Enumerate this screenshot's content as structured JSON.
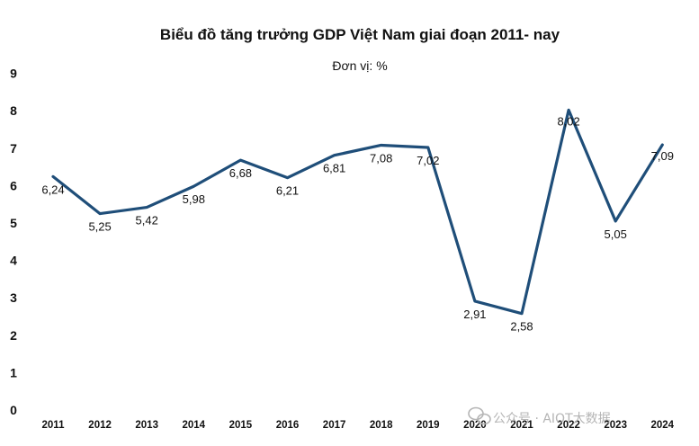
{
  "chart_data": {
    "type": "line",
    "title": "Biểu đồ tăng trưởng GDP Việt Nam giai đoạn 2011- nay",
    "subtitle": "Đơn vị: %",
    "categories": [
      "2011",
      "2012",
      "2013",
      "2014",
      "2015",
      "2016",
      "2017",
      "2018",
      "2019",
      "2020",
      "2021",
      "2022",
      "2023",
      "2024"
    ],
    "values": [
      6.24,
      5.25,
      5.42,
      5.98,
      6.68,
      6.21,
      6.81,
      7.08,
      7.02,
      2.91,
      2.58,
      8.02,
      5.05,
      7.09
    ],
    "data_labels": [
      "6,24",
      "5,25",
      "5,42",
      "5,98",
      "6,68",
      "6,21",
      "6,81",
      "7,08",
      "7,02",
      "2,91",
      "2,58",
      "8,02",
      "5,05",
      "7,09"
    ],
    "y_ticks": [
      "0",
      "1",
      "2",
      "3",
      "4",
      "5",
      "6",
      "7",
      "8",
      "9"
    ],
    "ylim": [
      0,
      9
    ],
    "grid": false,
    "legend": "none",
    "line_color": "#1f4e79"
  },
  "watermark": {
    "text": "公众号 · AIOT大数据",
    "icon": "wechat-icon"
  }
}
